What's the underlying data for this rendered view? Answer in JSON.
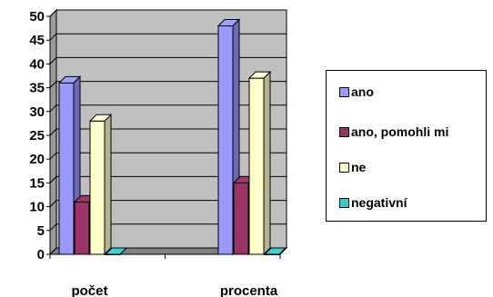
{
  "chart_data": {
    "type": "bar",
    "categories": [
      "počet",
      "procenta"
    ],
    "series": [
      {
        "name": "ano",
        "values": [
          36,
          48
        ],
        "color": "#9999ff"
      },
      {
        "name": "ano, pomohli mi",
        "values": [
          11,
          15
        ],
        "color": "#993366"
      },
      {
        "name": "ne",
        "values": [
          28,
          37
        ],
        "color": "#ffffcc"
      },
      {
        "name": "negativní",
        "values": [
          0,
          0
        ],
        "color": "#33cccc"
      }
    ],
    "y_ticks": [
      "0",
      "5",
      "10",
      "15",
      "20",
      "25",
      "30",
      "35",
      "40",
      "45",
      "50"
    ],
    "ylim": [
      0,
      50
    ],
    "grid": true,
    "legend_position": "right",
    "style": "3d-bars",
    "plot_background": "#c0c0c0"
  }
}
